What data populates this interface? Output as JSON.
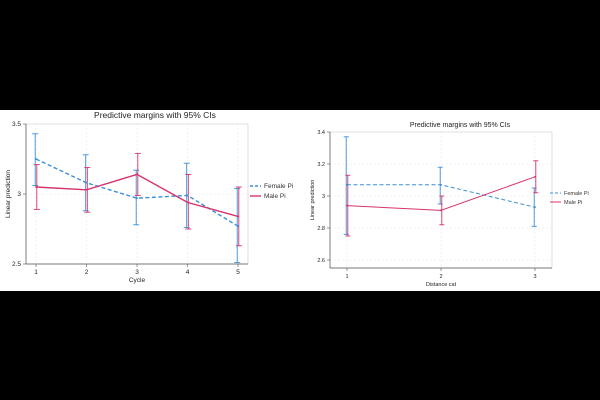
{
  "chart_data": [
    {
      "type": "line",
      "title": "Predictive margins with 95% CIs",
      "xlabel": "Cycle",
      "ylabel": "Linear prediction",
      "x": [
        "1",
        "2",
        "3",
        "4",
        "5"
      ],
      "xlim": [
        1,
        5
      ],
      "ylim": [
        2.5,
        3.5
      ],
      "yticks": [
        "2.5",
        "3",
        "3.5"
      ],
      "grid": true,
      "legend_position": "right",
      "series": [
        {
          "name": "Female Pi",
          "color": "#3a8fd9",
          "style": "dashed",
          "values": [
            3.25,
            3.08,
            2.97,
            2.99,
            2.77
          ],
          "ci_lower": [
            3.06,
            2.88,
            2.78,
            2.76,
            2.51
          ],
          "ci_upper": [
            3.43,
            3.28,
            3.17,
            3.22,
            3.04
          ]
        },
        {
          "name": "Male Pi",
          "color": "#d6336c",
          "style": "solid",
          "values": [
            3.05,
            3.03,
            3.14,
            2.94,
            2.84
          ],
          "ci_lower": [
            2.89,
            2.87,
            2.99,
            2.75,
            2.63
          ],
          "ci_upper": [
            3.21,
            3.19,
            3.29,
            3.14,
            3.05
          ]
        }
      ]
    },
    {
      "type": "line",
      "title": "Predictive margins with 95% CIs",
      "xlabel": "Distance cat",
      "ylabel": "Linear prediction",
      "x": [
        "1",
        "2",
        "3"
      ],
      "xlim": [
        1,
        3
      ],
      "ylim": [
        2.55,
        3.4
      ],
      "yticks": [
        "2.6",
        "2.8",
        "3",
        "3.2",
        "3.4"
      ],
      "grid": true,
      "legend_position": "right",
      "series": [
        {
          "name": "Female Pi",
          "color": "#3a8fd9",
          "style": "dashed",
          "values": [
            3.07,
            3.07,
            2.93
          ],
          "ci_lower": [
            2.76,
            2.95,
            2.81
          ],
          "ci_upper": [
            3.37,
            3.18,
            3.05
          ]
        },
        {
          "name": "Male Pi",
          "color": "#d6336c",
          "style": "solid",
          "values": [
            2.94,
            2.91,
            3.12
          ],
          "ci_lower": [
            2.75,
            2.82,
            3.02
          ],
          "ci_upper": [
            3.13,
            3.0,
            3.22
          ]
        }
      ]
    }
  ]
}
